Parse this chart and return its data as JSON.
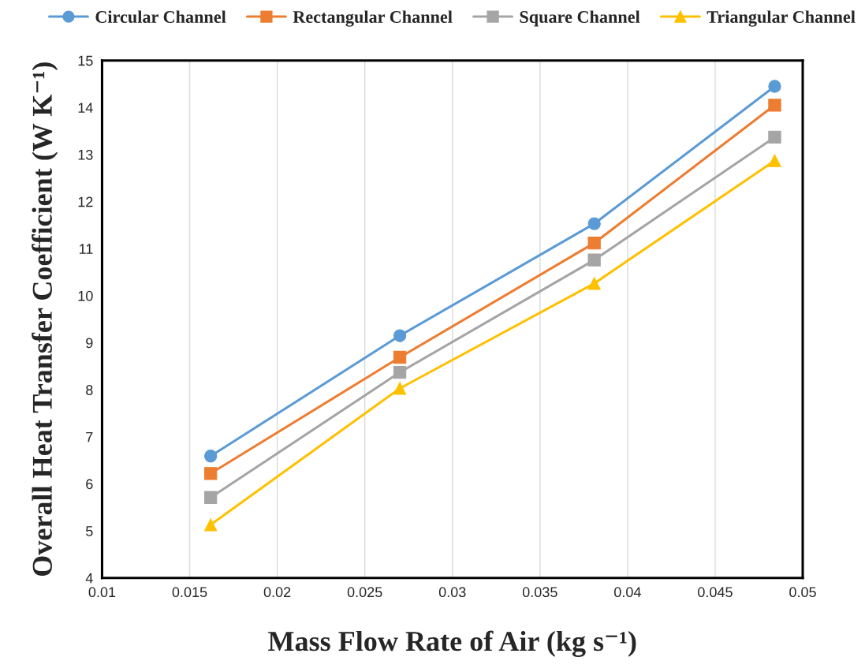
{
  "chart_data": {
    "type": "line",
    "xlabel": "Mass Flow Rate of Air (kg s⁻¹)",
    "ylabel": "Overall Heat Transfer Coefficient (W K⁻¹)",
    "x": [
      0.0162,
      0.027,
      0.0381,
      0.0484
    ],
    "series": [
      {
        "name": "Circular Channel",
        "color": "#5b9bd5",
        "marker": "circle",
        "values": [
          6.59,
          9.15,
          11.53,
          14.45
        ]
      },
      {
        "name": "Rectangular Channel",
        "color": "#ed7d31",
        "marker": "square",
        "values": [
          6.22,
          8.69,
          11.12,
          14.05
        ]
      },
      {
        "name": "Square Channel",
        "color": "#a5a5a5",
        "marker": "square",
        "values": [
          5.71,
          8.37,
          10.76,
          13.37
        ]
      },
      {
        "name": "Triangular Channel",
        "color": "#ffc000",
        "marker": "triangle",
        "values": [
          5.13,
          8.03,
          10.26,
          12.87
        ]
      }
    ],
    "xlim": [
      0.01,
      0.05
    ],
    "xticks": [
      0.01,
      0.015,
      0.02,
      0.025,
      0.03,
      0.035,
      0.04,
      0.045,
      0.05
    ],
    "ylim": [
      4,
      15
    ],
    "yticks": [
      4,
      5,
      6,
      7,
      8,
      9,
      10,
      11,
      12,
      13,
      14,
      15
    ],
    "grid": "x",
    "legend": "top",
    "line_style": "solid"
  }
}
